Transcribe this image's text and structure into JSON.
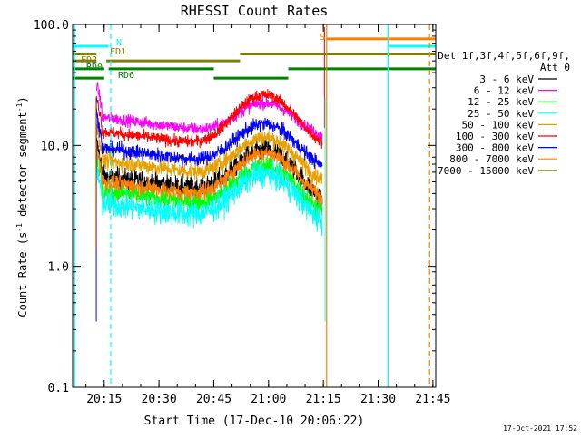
{
  "chart_data": {
    "type": "line",
    "title": "RHESSI Count Rates",
    "xlabel": "Start Time (17-Dec-10 20:06:22)",
    "ylabel_main": "Count Rate (s",
    "ylabel_sup1": "-1",
    "ylabel_mid": " detector segment",
    "ylabel_sup2": "-1",
    "ylabel_end": ")",
    "yscale": "log",
    "ylim": [
      0.1,
      100
    ],
    "xlim_minutes": [
      20.106,
      21.763
    ],
    "x_ticks": [
      {
        "t": 20.25,
        "label": "20:15"
      },
      {
        "t": 20.5,
        "label": "20:30"
      },
      {
        "t": 20.75,
        "label": "20:45"
      },
      {
        "t": 21.0,
        "label": "21:00"
      },
      {
        "t": 21.25,
        "label": "21:15"
      },
      {
        "t": 21.5,
        "label": "21:30"
      },
      {
        "t": 21.75,
        "label": "21:45"
      }
    ],
    "y_ticks": [
      {
        "v": 0.1,
        "label": "0.1"
      },
      {
        "v": 1,
        "label": "1.0"
      },
      {
        "v": 10,
        "label": "10.0"
      },
      {
        "v": 100,
        "label": "100.0"
      }
    ],
    "legend_header_1": "Det 1f,3f,4f,5f,6f,9f,",
    "legend_header_2": "Att 0",
    "series": [
      {
        "name": "3 - 6 keV",
        "color": "#000000",
        "amp": [
          5.5,
          9.5,
          3.8
        ],
        "noise": 0.09
      },
      {
        "name": "6 - 12 keV",
        "color": "#ff00ff",
        "amp": [
          17,
          23,
          15
        ],
        "noise": 0.05
      },
      {
        "name": "12 - 25 keV",
        "color": "#00ff00",
        "amp": [
          4.2,
          7.0,
          3.2
        ],
        "noise": 0.09
      },
      {
        "name": "25 - 50 keV",
        "color": "#00ffff",
        "amp": [
          3.3,
          6.0,
          2.7
        ],
        "noise": 0.11
      },
      {
        "name": "50 - 100 keV",
        "color": "#e6a000",
        "amp": [
          7.5,
          12.0,
          6.0
        ],
        "noise": 0.07
      },
      {
        "name": "100 - 300 keV",
        "color": "#ff0000",
        "amp": [
          13,
          27,
          13
        ],
        "noise": 0.05
      },
      {
        "name": "300 - 800 keV",
        "color": "#0000ff",
        "amp": [
          9.5,
          15.5,
          8.0
        ],
        "noise": 0.06
      },
      {
        "name": "800 - 7000 keV",
        "color": "#ff7f00",
        "amp": [
          5.0,
          9.0,
          4.5
        ],
        "noise": 0.07
      },
      {
        "name": "7000 - 15000 keV",
        "color": "#808000",
        "amp": null,
        "noise": 0
      }
    ],
    "state_bars": [
      {
        "label": "N",
        "color": "#00ffff",
        "value": 66,
        "segments": [
          [
            20.106,
            20.27
          ],
          [
            21.548,
            21.763
          ]
        ]
      },
      {
        "label": "S",
        "color": "#ff7f00",
        "value": 76,
        "segments": [
          [
            21.263,
            21.763
          ]
        ]
      },
      {
        "label": "FD1",
        "color": "#808000",
        "value": 57,
        "segments": [
          [
            20.106,
            20.215
          ],
          [
            20.87,
            21.763
          ]
        ]
      },
      {
        "label": "FD2",
        "color": "#808000",
        "value": 50,
        "segments": [
          [
            20.106,
            20.215
          ],
          [
            20.26,
            20.87
          ]
        ]
      },
      {
        "label": "RD0",
        "color": "#008000",
        "value": 43,
        "segments": [
          [
            20.106,
            20.25
          ],
          [
            20.27,
            20.75
          ],
          [
            21.09,
            21.763
          ]
        ]
      },
      {
        "label": "RD6",
        "color": "#008000",
        "value": 36,
        "segments": [
          [
            20.106,
            20.25
          ],
          [
            20.75,
            21.09
          ]
        ]
      }
    ],
    "vlines_solid": [
      {
        "t": 20.115,
        "color": "#00ffff"
      },
      {
        "t": 21.265,
        "color": "#ff7f00"
      },
      {
        "t": 21.545,
        "color": "#00ffff"
      }
    ],
    "vlines_dashed": [
      {
        "t": 20.28,
        "color": "#00ffff"
      },
      {
        "t": 21.735,
        "color": "#ff7f00"
      }
    ],
    "grid": false,
    "legend_position": "right"
  },
  "footer": {
    "timestamp": "17-Oct-2021 17:52"
  }
}
